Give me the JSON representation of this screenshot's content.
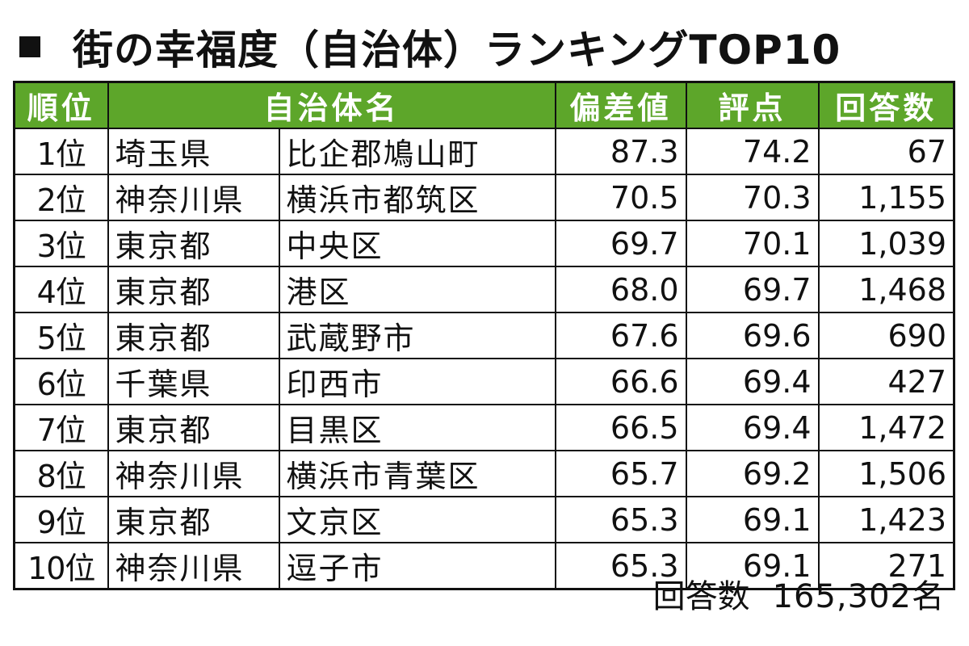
{
  "title": "街の幸福度（自治体）ランキングTOP10",
  "table": {
    "headers": {
      "rank": "順位",
      "municipality": "自治体名",
      "deviation": "偏差値",
      "score": "評点",
      "responses": "回答数"
    },
    "rows": [
      {
        "rank": "1位",
        "prefecture": "埼玉県",
        "city": "比企郡鳩山町",
        "deviation": "87.3",
        "score": "74.2",
        "responses": "67"
      },
      {
        "rank": "2位",
        "prefecture": "神奈川県",
        "city": "横浜市都筑区",
        "deviation": "70.5",
        "score": "70.3",
        "responses": "1,155"
      },
      {
        "rank": "3位",
        "prefecture": "東京都",
        "city": "中央区",
        "deviation": "69.7",
        "score": "70.1",
        "responses": "1,039"
      },
      {
        "rank": "4位",
        "prefecture": "東京都",
        "city": "港区",
        "deviation": "68.0",
        "score": "69.7",
        "responses": "1,468"
      },
      {
        "rank": "5位",
        "prefecture": "東京都",
        "city": "武蔵野市",
        "deviation": "67.6",
        "score": "69.6",
        "responses": "690"
      },
      {
        "rank": "6位",
        "prefecture": "千葉県",
        "city": "印西市",
        "deviation": "66.6",
        "score": "69.4",
        "responses": "427"
      },
      {
        "rank": "7位",
        "prefecture": "東京都",
        "city": "目黒区",
        "deviation": "66.5",
        "score": "69.4",
        "responses": "1,472"
      },
      {
        "rank": "8位",
        "prefecture": "神奈川県",
        "city": "横浜市青葉区",
        "deviation": "65.7",
        "score": "69.2",
        "responses": "1,506"
      },
      {
        "rank": "9位",
        "prefecture": "東京都",
        "city": "文京区",
        "deviation": "65.3",
        "score": "69.1",
        "responses": "1,423"
      },
      {
        "rank": "10位",
        "prefecture": "神奈川県",
        "city": "逗子市",
        "deviation": "65.3",
        "score": "69.1",
        "responses": "271"
      }
    ]
  },
  "footer": {
    "label": "回答数",
    "value": "165,302名"
  },
  "colors": {
    "header_bg": "#5da62a",
    "header_text": "#ffffff",
    "border": "#111111"
  }
}
